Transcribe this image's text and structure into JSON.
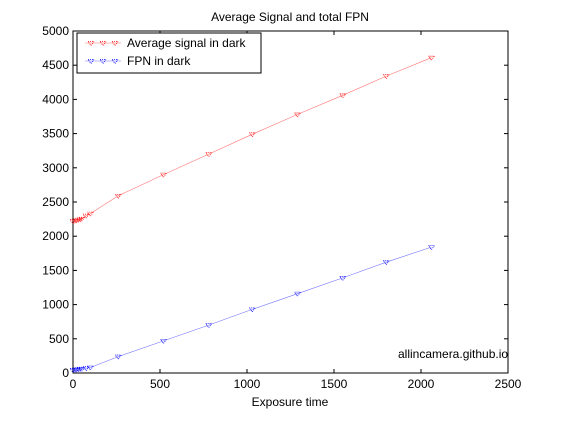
{
  "chart_data": {
    "type": "line",
    "title": "Average Signal and total FPN",
    "xlabel": "Exposure time",
    "ylabel": "",
    "xlim": [
      0,
      2500
    ],
    "ylim": [
      0,
      5000
    ],
    "xticks": [
      0,
      500,
      1000,
      1500,
      2000,
      2500
    ],
    "yticks": [
      0,
      500,
      1000,
      1500,
      2000,
      2500,
      3000,
      3500,
      4000,
      4500,
      5000
    ],
    "grid": false,
    "legend_position": "top-left",
    "series": [
      {
        "name": "Average signal in dark",
        "color": "#ff0000",
        "x": [
          0,
          10,
          20,
          30,
          40,
          50,
          75,
          100,
          260,
          520,
          780,
          1030,
          1290,
          1550,
          1800,
          2060
        ],
        "y": [
          2220,
          2225,
          2230,
          2240,
          2245,
          2255,
          2300,
          2330,
          2590,
          2900,
          3200,
          3490,
          3780,
          4060,
          4340,
          4610
        ]
      },
      {
        "name": "FPN in dark",
        "color": "#0000ff",
        "x": [
          0,
          10,
          20,
          30,
          40,
          50,
          75,
          100,
          260,
          520,
          780,
          1030,
          1290,
          1550,
          1800,
          2060
        ],
        "y": [
          45,
          48,
          50,
          55,
          60,
          62,
          70,
          80,
          240,
          470,
          700,
          930,
          1160,
          1390,
          1620,
          1840
        ]
      }
    ],
    "annotation": "allincamera.github.io"
  }
}
